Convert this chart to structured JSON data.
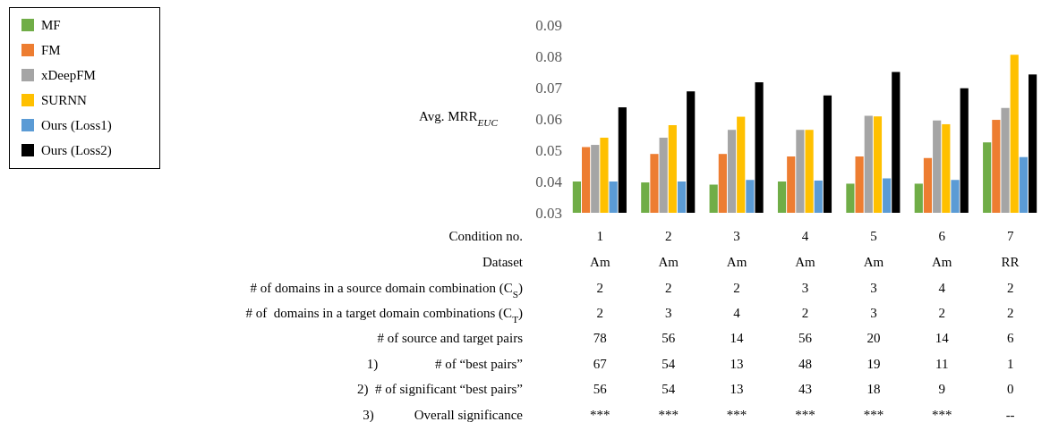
{
  "chart_data": {
    "type": "bar",
    "ylabel": "Avg. MRR$_{EUC}$",
    "xlabel": "Condition no.",
    "categories": [
      "1",
      "2",
      "3",
      "4",
      "5",
      "6",
      "7"
    ],
    "ylim": [
      0.03,
      0.09
    ],
    "yticks": [
      {
        "value": 0.03,
        "label": "0.03"
      },
      {
        "value": 0.04,
        "label": "0.04"
      },
      {
        "value": 0.05,
        "label": "0.05"
      },
      {
        "value": 0.06,
        "label": "0.06"
      },
      {
        "value": 0.07,
        "label": "0.07"
      },
      {
        "value": 0.08,
        "label": "0.08"
      },
      {
        "value": 0.09,
        "label": "0.09"
      }
    ],
    "legend": "top left",
    "series": [
      {
        "name": "MF",
        "color": "#70ad47",
        "values": [
          0.04,
          0.0397,
          0.039,
          0.04,
          0.0393,
          0.0393,
          0.0525
        ]
      },
      {
        "name": "FM",
        "color": "#ed7d31",
        "values": [
          0.051,
          0.0488,
          0.0488,
          0.048,
          0.048,
          0.0475,
          0.0597
        ]
      },
      {
        "name": "xDeepFM",
        "color": "#a5a5a5",
        "values": [
          0.0517,
          0.054,
          0.0565,
          0.0565,
          0.061,
          0.0595,
          0.0635
        ]
      },
      {
        "name": "SURNN",
        "color": "#ffc000",
        "values": [
          0.054,
          0.058,
          0.0607,
          0.0565,
          0.0608,
          0.0583,
          0.0805
        ]
      },
      {
        "name": "Ours (Loss1)",
        "color": "#5b9bd5",
        "values": [
          0.04,
          0.04,
          0.0405,
          0.0403,
          0.041,
          0.0405,
          0.0478
        ]
      },
      {
        "name": "Ours (Loss2)",
        "color": "#000000",
        "values": [
          0.0637,
          0.0688,
          0.0717,
          0.0675,
          0.075,
          0.0698,
          0.0742
        ]
      }
    ],
    "annotations": [
      "Dataset",
      "Am",
      "Am",
      "Am",
      "Am",
      "Am",
      "Am",
      "RR",
      "# of domains in a source domain combination (C$_{S}$)",
      "2",
      "2",
      "2",
      "3",
      "3",
      "4",
      "2",
      "# of  domains in a target domain combinations (C$_{T}$)",
      "2",
      "3",
      "4",
      "2",
      "3",
      "2",
      "2",
      "# of source and target pairs",
      "78",
      "56",
      "14",
      "56",
      "20",
      "14",
      "6",
      "1)                 # of “best pairs”",
      "67",
      "54",
      "13",
      "48",
      "19",
      "11",
      "1",
      "2)  # of significant “best pairs”",
      "56",
      "54",
      "13",
      "43",
      "18",
      "9",
      "0",
      "3)            Overall significance",
      "***",
      "***",
      "***",
      "***",
      "***",
      "***",
      "--"
    ]
  }
}
